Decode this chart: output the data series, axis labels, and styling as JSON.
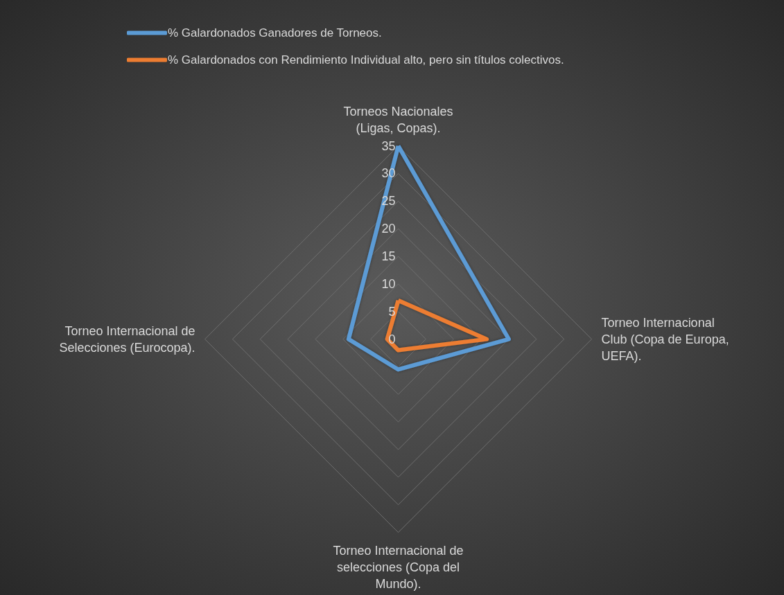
{
  "chart_data": {
    "type": "radar",
    "categories": [
      "Torneos Nacionales (Ligas, Copas).",
      "Torneo Internacional Club (Copa de Europa, UEFA).",
      "Torneo Internacional de selecciones (Copa del Mundo).",
      "Torneo Internacional de Selecciones (Eurocopa)."
    ],
    "series": [
      {
        "name": "% Galardonados Ganadores de Torneos.",
        "color": "#5b9bd5",
        "values": [
          35,
          20,
          5.5,
          9
        ]
      },
      {
        "name": "% Galardonados con Rendimiento Individual alto, pero sin títulos colectivos.",
        "color": "#ed7d31",
        "values": [
          7,
          16,
          2,
          2
        ]
      }
    ],
    "ylim": [
      0,
      35
    ],
    "yticks": [
      0,
      5,
      10,
      15,
      20,
      25,
      30,
      35
    ],
    "grid": true,
    "legend": "top left",
    "marker": "none",
    "line_style": "solid"
  }
}
